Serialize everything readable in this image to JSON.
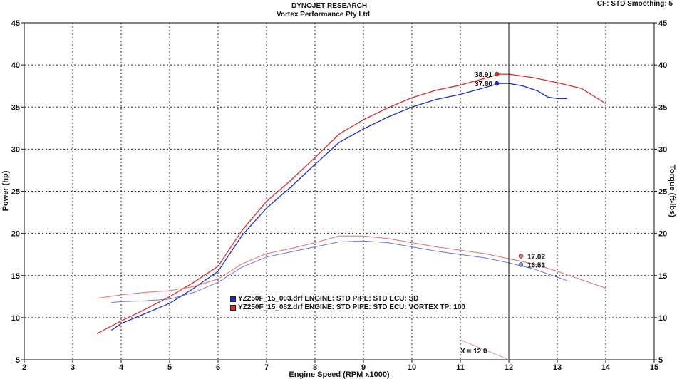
{
  "header": {
    "title": "DYNOJET RESEARCH",
    "subtitle": "Vortex Performance Pty Ltd",
    "settings": "CF: STD  Smoothing: 5"
  },
  "legend": {
    "entries": [
      {
        "label": "YZ250F_15_003.drf ENGINE: STD PIPE: STD ECU: SD",
        "color": "#1f2fbf"
      },
      {
        "label": "YZ250F_15_082.drf ENGINE: STD PIPE: STD ECU: VORTEX TP: 100",
        "color": "#d03030"
      }
    ]
  },
  "chart_data": {
    "type": "line",
    "xlabel": "Engine Speed (RPM x1000)",
    "ylabel": "Power (hp)",
    "y2label": "Torque (ft-lbs)",
    "xlim": [
      2,
      15
    ],
    "ylim": [
      5,
      45
    ],
    "y2lim": [
      5,
      45
    ],
    "x_ticks": [
      2,
      3,
      4,
      5,
      6,
      7,
      8,
      9,
      10,
      11,
      12,
      13,
      14,
      15
    ],
    "y_ticks": [
      5,
      10,
      15,
      20,
      25,
      30,
      35,
      40,
      45
    ],
    "grid": true,
    "cursor": {
      "x": 12.0,
      "label": "X = 12.0"
    },
    "series": [
      {
        "name": "YZ250F_15_003.drf",
        "quantity": "power",
        "color": "#1f2fbf",
        "x": [
          3.8,
          4.0,
          4.5,
          5.0,
          5.5,
          6.0,
          6.5,
          7.0,
          7.5,
          8.0,
          8.5,
          9.0,
          9.5,
          10.0,
          10.5,
          11.0,
          11.5,
          11.8,
          12.0,
          12.3,
          12.6,
          12.8,
          13.0,
          13.2
        ],
        "y": [
          8.5,
          9.3,
          10.5,
          11.7,
          13.5,
          15.5,
          19.8,
          23.0,
          25.5,
          28.2,
          30.8,
          32.4,
          33.8,
          35.0,
          35.9,
          36.5,
          37.3,
          37.8,
          37.8,
          37.5,
          36.9,
          36.2,
          36.0,
          36.0
        ]
      },
      {
        "name": "YZ250F_15_082.drf",
        "quantity": "power",
        "color": "#d03030",
        "x": [
          3.5,
          4.0,
          4.5,
          5.0,
          5.5,
          6.0,
          6.5,
          7.0,
          7.5,
          8.0,
          8.5,
          9.0,
          9.5,
          10.0,
          10.5,
          11.0,
          11.5,
          11.8,
          12.0,
          12.5,
          13.0,
          13.5,
          14.0
        ],
        "y": [
          8.1,
          9.6,
          11.0,
          12.5,
          14.2,
          16.1,
          20.4,
          23.8,
          26.3,
          29.0,
          31.8,
          33.5,
          34.9,
          36.1,
          37.0,
          37.6,
          38.4,
          38.9,
          38.9,
          38.5,
          37.9,
          37.2,
          35.4
        ]
      },
      {
        "name": "YZ250F_15_003.drf",
        "quantity": "torque",
        "color": "#6a78d8",
        "x": [
          3.8,
          4.0,
          4.5,
          5.0,
          5.5,
          6.0,
          6.5,
          7.0,
          7.5,
          8.0,
          8.5,
          9.0,
          9.5,
          10.0,
          10.5,
          11.0,
          11.5,
          12.0,
          12.5,
          13.0,
          13.2
        ],
        "y": [
          11.8,
          11.9,
          12.0,
          12.2,
          13.0,
          14.2,
          16.0,
          17.2,
          17.8,
          18.4,
          19.0,
          19.1,
          18.9,
          18.4,
          17.9,
          17.5,
          17.1,
          16.5,
          15.8,
          14.8,
          14.4
        ]
      },
      {
        "name": "YZ250F_15_082.drf",
        "quantity": "torque",
        "color": "#e07070",
        "x": [
          3.5,
          4.0,
          4.5,
          5.0,
          5.5,
          6.0,
          6.5,
          7.0,
          7.5,
          8.0,
          8.5,
          9.0,
          9.5,
          10.0,
          10.5,
          11.0,
          11.5,
          12.0,
          12.5,
          13.0,
          13.5,
          14.0
        ],
        "y": [
          12.3,
          12.7,
          13.0,
          13.2,
          13.7,
          14.6,
          16.4,
          17.6,
          18.2,
          18.9,
          19.7,
          19.7,
          19.4,
          18.9,
          18.4,
          18.0,
          17.6,
          17.0,
          16.4,
          15.5,
          14.5,
          13.5
        ]
      }
    ],
    "peaks": [
      {
        "label": "38.91",
        "x": 11.75,
        "y": 38.91,
        "color": "#d03030"
      },
      {
        "label": "37.80",
        "x": 11.75,
        "y": 37.8,
        "color": "#1f2fbf"
      },
      {
        "label": "17.02",
        "x": 12.25,
        "y": 17.3,
        "color": "#e07070"
      },
      {
        "label": "16.53",
        "x": 12.25,
        "y": 16.3,
        "color": "#8a8fe8"
      }
    ]
  }
}
